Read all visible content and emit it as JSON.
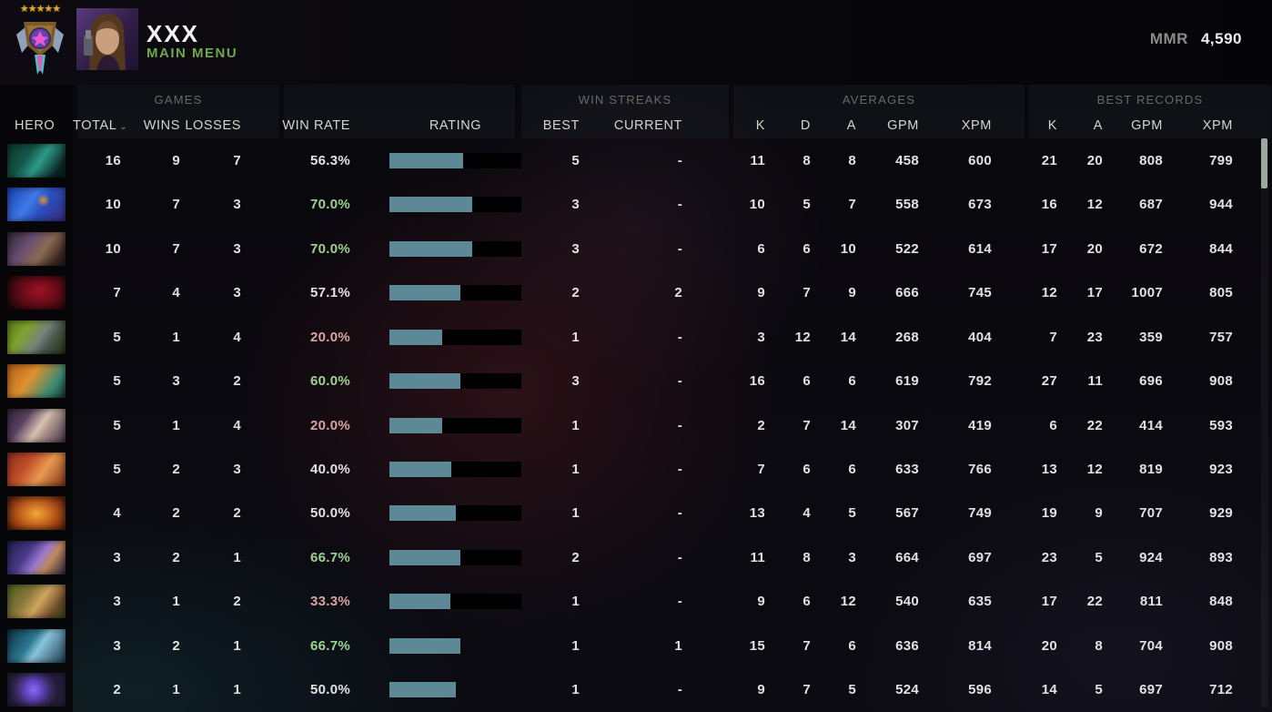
{
  "header": {
    "player_name": "XXX",
    "nav_label": "MAIN MENU",
    "mmr_label": "MMR",
    "mmr_value": "4,590",
    "rank_stars": "★★★★★"
  },
  "columns": {
    "hero": "HERO",
    "games_group": "GAMES",
    "total": "TOTAL",
    "wins": "WINS",
    "losses": "LOSSES",
    "win_rate": "WIN RATE",
    "rating": "RATING",
    "win_streaks_group": "WIN STREAKS",
    "best": "BEST",
    "current": "CURRENT",
    "averages_group": "AVERAGES",
    "avg_k": "K",
    "avg_d": "D",
    "avg_a": "A",
    "avg_gpm": "GPM",
    "avg_xpm": "XPM",
    "best_records_group": "BEST RECORDS",
    "br_k": "K",
    "br_a": "A",
    "br_gpm": "GPM",
    "br_xpm": "XPM"
  },
  "colors": {
    "green": "#9ed194",
    "red": "#d9a3a3",
    "white": "#e2e2e2",
    "bar_fill": "#5d8997",
    "bar_track": "#000000",
    "nav_green": "#6fa84a",
    "group_label": "#676962",
    "column_label": "#d6d4cf",
    "mmr_label": "#8c8c8c"
  },
  "rows": [
    {
      "hero": "teal-dragon",
      "portrait_gradient": "linear-gradient(125deg,#0d3528 0%,#15584a 35%,#2e9a8a 55%,#0a2420 85%)",
      "total": "16",
      "wins": "9",
      "losses": "7",
      "win_rate": "56.3%",
      "win_rate_color": "white",
      "rating_pct": 56,
      "rating_track": true,
      "streak_best": "5",
      "streak_current": "-",
      "avg_k": "11",
      "avg_d": "8",
      "avg_a": "8",
      "avg_gpm": "458",
      "avg_xpm": "600",
      "br_k": "21",
      "br_a": "20",
      "br_gpm": "808",
      "br_xpm": "799"
    },
    {
      "hero": "blue-faerie",
      "portrait_gradient": "radial-gradient(10px 10px at 62% 38%,#e8902a 0%,rgba(232,144,42,0) 70%),linear-gradient(125deg,#1d3fae 0%,#3f7ae8 40%,#2a4fc0 60%,#3a2a7a 100%)",
      "total": "10",
      "wins": "7",
      "losses": "3",
      "win_rate": "70.0%",
      "win_rate_color": "green",
      "rating_pct": 62.5,
      "rating_track": true,
      "streak_best": "3",
      "streak_current": "-",
      "avg_k": "10",
      "avg_d": "5",
      "avg_a": "7",
      "avg_gpm": "558",
      "avg_xpm": "673",
      "br_k": "16",
      "br_a": "12",
      "br_gpm": "687",
      "br_xpm": "944"
    },
    {
      "hero": "goggled-tinkerer",
      "portrait_gradient": "linear-gradient(125deg,#2e2433 0%,#6a4f72 35%,#8a6a52 60%,#3a2420 85%,#201722 100%)",
      "total": "10",
      "wins": "7",
      "losses": "3",
      "win_rate": "70.0%",
      "win_rate_color": "green",
      "rating_pct": 62.5,
      "rating_track": true,
      "streak_best": "3",
      "streak_current": "-",
      "avg_k": "6",
      "avg_d": "6",
      "avg_a": "10",
      "avg_gpm": "522",
      "avg_xpm": "614",
      "br_k": "17",
      "br_a": "20",
      "br_gpm": "672",
      "br_xpm": "844"
    },
    {
      "hero": "shadow-fiend",
      "portrait_gradient": "radial-gradient(40px 30px at 55% 45%,#a01325 0%,#5e0b16 55%,#1c060a 100%)",
      "total": "7",
      "wins": "4",
      "losses": "3",
      "win_rate": "57.1%",
      "win_rate_color": "white",
      "rating_pct": 54,
      "rating_track": true,
      "streak_best": "2",
      "streak_current": "2",
      "avg_k": "9",
      "avg_d": "7",
      "avg_a": "9",
      "avg_gpm": "666",
      "avg_xpm": "745",
      "br_k": "12",
      "br_a": "17",
      "br_gpm": "1007",
      "br_xpm": "805"
    },
    {
      "hero": "green-armored",
      "portrait_gradient": "linear-gradient(125deg,#57761c 0%,#7fa32c 30%,#77837c 55%,#4a5a50 70%,#222e10 100%)",
      "total": "5",
      "wins": "1",
      "losses": "4",
      "win_rate": "20.0%",
      "win_rate_color": "red",
      "rating_pct": 40,
      "rating_track": true,
      "streak_best": "1",
      "streak_current": "-",
      "avg_k": "3",
      "avg_d": "12",
      "avg_a": "14",
      "avg_gpm": "268",
      "avg_xpm": "404",
      "br_k": "7",
      "br_a": "23",
      "br_gpm": "359",
      "br_xpm": "757"
    },
    {
      "hero": "orange-warrior",
      "portrait_gradient": "linear-gradient(125deg,#b35c1a 0%,#e0912e 40%,#3a8a74 75%,#14352c 100%)",
      "total": "5",
      "wins": "3",
      "losses": "2",
      "win_rate": "60.0%",
      "win_rate_color": "green",
      "rating_pct": 54,
      "rating_track": true,
      "streak_best": "3",
      "streak_current": "-",
      "avg_k": "16",
      "avg_d": "6",
      "avg_a": "6",
      "avg_gpm": "619",
      "avg_xpm": "792",
      "br_k": "27",
      "br_a": "11",
      "br_gpm": "696",
      "br_xpm": "908"
    },
    {
      "hero": "pale-mage",
      "portrait_gradient": "linear-gradient(125deg,#2e2238 0%,#5a4260 30%,#d8c2b2 55%,#b09a90 65%,#42304a 100%)",
      "total": "5",
      "wins": "1",
      "losses": "4",
      "win_rate": "20.0%",
      "win_rate_color": "red",
      "rating_pct": 40,
      "rating_track": true,
      "streak_best": "1",
      "streak_current": "-",
      "avg_k": "2",
      "avg_d": "7",
      "avg_a": "14",
      "avg_gpm": "307",
      "avg_xpm": "419",
      "br_k": "6",
      "br_a": "22",
      "br_gpm": "414",
      "br_xpm": "593"
    },
    {
      "hero": "red-troll",
      "portrait_gradient": "linear-gradient(125deg,#8a2a1a 0%,#c2502a 35%,#e89a50 60%,#7a3018 100%)",
      "total": "5",
      "wins": "2",
      "losses": "3",
      "win_rate": "40.0%",
      "win_rate_color": "white",
      "rating_pct": 47,
      "rating_track": true,
      "streak_best": "1",
      "streak_current": "-",
      "avg_k": "7",
      "avg_d": "6",
      "avg_a": "6",
      "avg_gpm": "633",
      "avg_xpm": "766",
      "br_k": "13",
      "br_a": "12",
      "br_gpm": "819",
      "br_xpm": "923"
    },
    {
      "hero": "fire-rider",
      "portrait_gradient": "radial-gradient(36px 26px at 50% 52%,#f0aa3a 0%,#c2601c 50%,#60230c 100%)",
      "total": "4",
      "wins": "2",
      "losses": "2",
      "win_rate": "50.0%",
      "win_rate_color": "white",
      "rating_pct": 50,
      "rating_track": true,
      "streak_best": "1",
      "streak_current": "-",
      "avg_k": "13",
      "avg_d": "4",
      "avg_a": "5",
      "avg_gpm": "567",
      "avg_xpm": "749",
      "br_k": "19",
      "br_a": "9",
      "br_gpm": "707",
      "br_xpm": "929"
    },
    {
      "hero": "purple-monk",
      "portrait_gradient": "linear-gradient(125deg,#1e1e4a 0%,#4a3a8a 35%,#9a7ad0 55%,#c08a5a 70%,#2a2248 100%)",
      "total": "3",
      "wins": "2",
      "losses": "1",
      "win_rate": "66.7%",
      "win_rate_color": "green",
      "rating_pct": 53.5,
      "rating_track": true,
      "streak_best": "2",
      "streak_current": "-",
      "avg_k": "11",
      "avg_d": "8",
      "avg_a": "3",
      "avg_gpm": "664",
      "avg_xpm": "697",
      "br_k": "23",
      "br_a": "5",
      "br_gpm": "924",
      "br_xpm": "893"
    },
    {
      "hero": "monkey-king",
      "portrait_gradient": "linear-gradient(125deg,#4a5a22 0%,#8a7a3a 35%,#d0a45e 55%,#6a4a28 80%,#33411c 100%)",
      "total": "3",
      "wins": "1",
      "losses": "2",
      "win_rate": "33.3%",
      "win_rate_color": "red",
      "rating_pct": 46.5,
      "rating_track": true,
      "streak_best": "1",
      "streak_current": "-",
      "avg_k": "9",
      "avg_d": "6",
      "avg_a": "12",
      "avg_gpm": "540",
      "avg_xpm": "635",
      "br_k": "17",
      "br_a": "22",
      "br_gpm": "811",
      "br_xpm": "848"
    },
    {
      "hero": "blue-assassin",
      "portrait_gradient": "linear-gradient(125deg,#0b2e3e 0%,#2e7a94 40%,#8ac4da 55%,#1a3950 100%)",
      "total": "3",
      "wins": "2",
      "losses": "1",
      "win_rate": "66.7%",
      "win_rate_color": "green",
      "rating_pct": 53.5,
      "rating_track": false,
      "streak_best": "1",
      "streak_current": "1",
      "avg_k": "15",
      "avg_d": "7",
      "avg_a": "6",
      "avg_gpm": "636",
      "avg_xpm": "814",
      "br_k": "20",
      "br_a": "8",
      "br_gpm": "704",
      "br_xpm": "908"
    },
    {
      "hero": "purple-orb-warden",
      "portrait_gradient": "radial-gradient(26px 26px at 45% 50%,#8a6af5 0%,#5a42b8 40%,#3a2c62 70%,#241d38 100%)",
      "total": "2",
      "wins": "1",
      "losses": "1",
      "win_rate": "50.0%",
      "win_rate_color": "white",
      "rating_pct": 50,
      "rating_track": false,
      "streak_best": "1",
      "streak_current": "-",
      "avg_k": "9",
      "avg_d": "7",
      "avg_a": "5",
      "avg_gpm": "524",
      "avg_xpm": "596",
      "br_k": "14",
      "br_a": "5",
      "br_gpm": "697",
      "br_xpm": "712"
    }
  ]
}
